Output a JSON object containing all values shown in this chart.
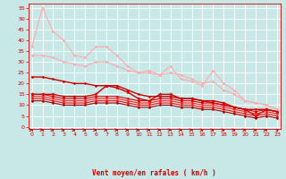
{
  "bg_color": "#c8e8e8",
  "grid_color": "#ffffff",
  "xlabel": "Vent moyen/en rafales ( km/h )",
  "xlabel_color": "#cc0000",
  "tick_color": "#cc0000",
  "x_ticks": [
    0,
    1,
    2,
    3,
    4,
    5,
    6,
    7,
    8,
    9,
    10,
    11,
    12,
    13,
    14,
    15,
    16,
    17,
    18,
    19,
    20,
    21,
    22,
    23
  ],
  "y_ticks": [
    0,
    5,
    10,
    15,
    20,
    25,
    30,
    35,
    40,
    45,
    50,
    55
  ],
  "ylim": [
    -1,
    57
  ],
  "xlim": [
    -0.3,
    23.3
  ],
  "lines": [
    {
      "x": [
        0,
        1,
        2,
        3,
        4,
        5,
        6,
        7,
        8,
        9,
        10,
        11,
        12,
        13,
        14,
        15,
        16,
        17,
        18,
        19,
        20,
        21,
        22,
        23
      ],
      "y": [
        37,
        55,
        44,
        40,
        33,
        32,
        37,
        37,
        33,
        28,
        25,
        26,
        24,
        28,
        22,
        21,
        19,
        26,
        20,
        17,
        12,
        11,
        10,
        8
      ],
      "color": "#ffaaaa",
      "lw": 0.8,
      "marker": "D",
      "ms": 1.5
    },
    {
      "x": [
        0,
        1,
        2,
        3,
        4,
        5,
        6,
        7,
        8,
        9,
        10,
        11,
        12,
        13,
        14,
        15,
        16,
        17,
        18,
        19,
        20,
        21,
        22,
        23
      ],
      "y": [
        33,
        33,
        32,
        30,
        29,
        28,
        30,
        30,
        28,
        26,
        25,
        25,
        24,
        25,
        24,
        22,
        20,
        21,
        17,
        15,
        12,
        11,
        10,
        8
      ],
      "color": "#ffaaaa",
      "lw": 0.8,
      "marker": "D",
      "ms": 1.5
    },
    {
      "x": [
        0,
        1,
        2,
        3,
        4,
        5,
        6,
        7,
        8,
        9,
        10,
        11,
        12,
        13,
        14,
        15,
        16,
        17,
        18,
        19,
        20,
        21,
        22,
        23
      ],
      "y": [
        23,
        23,
        22,
        21,
        20,
        20,
        19,
        19,
        19,
        17,
        15,
        14,
        14,
        14,
        13,
        13,
        12,
        11,
        10,
        9,
        8,
        8,
        8,
        7
      ],
      "color": "#cc0000",
      "lw": 1.0,
      "marker": "D",
      "ms": 1.5
    },
    {
      "x": [
        0,
        1,
        2,
        3,
        4,
        5,
        6,
        7,
        8,
        9,
        10,
        11,
        12,
        13,
        14,
        15,
        16,
        17,
        18,
        19,
        20,
        21,
        22,
        23
      ],
      "y": [
        15,
        15,
        15,
        14,
        14,
        14,
        15,
        19,
        18,
        16,
        13,
        12,
        15,
        15,
        13,
        13,
        12,
        12,
        11,
        9,
        8,
        5,
        8,
        7
      ],
      "color": "#cc0000",
      "lw": 1.0,
      "marker": "*",
      "ms": 3
    },
    {
      "x": [
        0,
        1,
        2,
        3,
        4,
        5,
        6,
        7,
        8,
        9,
        10,
        11,
        12,
        13,
        14,
        15,
        16,
        17,
        18,
        19,
        20,
        21,
        22,
        23
      ],
      "y": [
        15,
        15,
        14,
        13,
        13,
        13,
        14,
        14,
        14,
        13,
        12,
        12,
        13,
        13,
        12,
        12,
        11,
        11,
        10,
        9,
        8,
        7,
        8,
        7
      ],
      "color": "#dd0000",
      "lw": 0.8,
      "marker": "D",
      "ms": 1.5
    },
    {
      "x": [
        0,
        1,
        2,
        3,
        4,
        5,
        6,
        7,
        8,
        9,
        10,
        11,
        12,
        13,
        14,
        15,
        16,
        17,
        18,
        19,
        20,
        21,
        22,
        23
      ],
      "y": [
        14,
        14,
        13,
        12,
        12,
        12,
        13,
        13,
        13,
        12,
        11,
        11,
        12,
        12,
        11,
        11,
        10,
        10,
        9,
        8,
        7,
        6,
        7,
        6
      ],
      "color": "#ff2222",
      "lw": 0.8,
      "marker": "D",
      "ms": 1.5
    },
    {
      "x": [
        0,
        1,
        2,
        3,
        4,
        5,
        6,
        7,
        8,
        9,
        10,
        11,
        12,
        13,
        14,
        15,
        16,
        17,
        18,
        19,
        20,
        21,
        22,
        23
      ],
      "y": [
        13,
        13,
        12,
        11,
        11,
        11,
        12,
        12,
        12,
        11,
        10,
        10,
        11,
        11,
        10,
        10,
        9,
        9,
        8,
        7,
        6,
        5,
        6,
        5
      ],
      "color": "#ee1111",
      "lw": 0.8,
      "marker": "D",
      "ms": 1.5
    },
    {
      "x": [
        0,
        1,
        2,
        3,
        4,
        5,
        6,
        7,
        8,
        9,
        10,
        11,
        12,
        13,
        14,
        15,
        16,
        17,
        18,
        19,
        20,
        21,
        22,
        23
      ],
      "y": [
        12,
        12,
        11,
        10,
        10,
        10,
        11,
        11,
        11,
        10,
        9,
        9,
        10,
        10,
        9,
        9,
        8,
        8,
        7,
        6,
        5,
        4,
        5,
        4
      ],
      "color": "#aa0000",
      "lw": 0.8,
      "marker": "D",
      "ms": 1.5
    }
  ],
  "arrow_angles": [
    0,
    0,
    0,
    5,
    10,
    10,
    10,
    10,
    10,
    10,
    10,
    10,
    10,
    10,
    10,
    10,
    10,
    10,
    10,
    10,
    15,
    25,
    40,
    60
  ]
}
